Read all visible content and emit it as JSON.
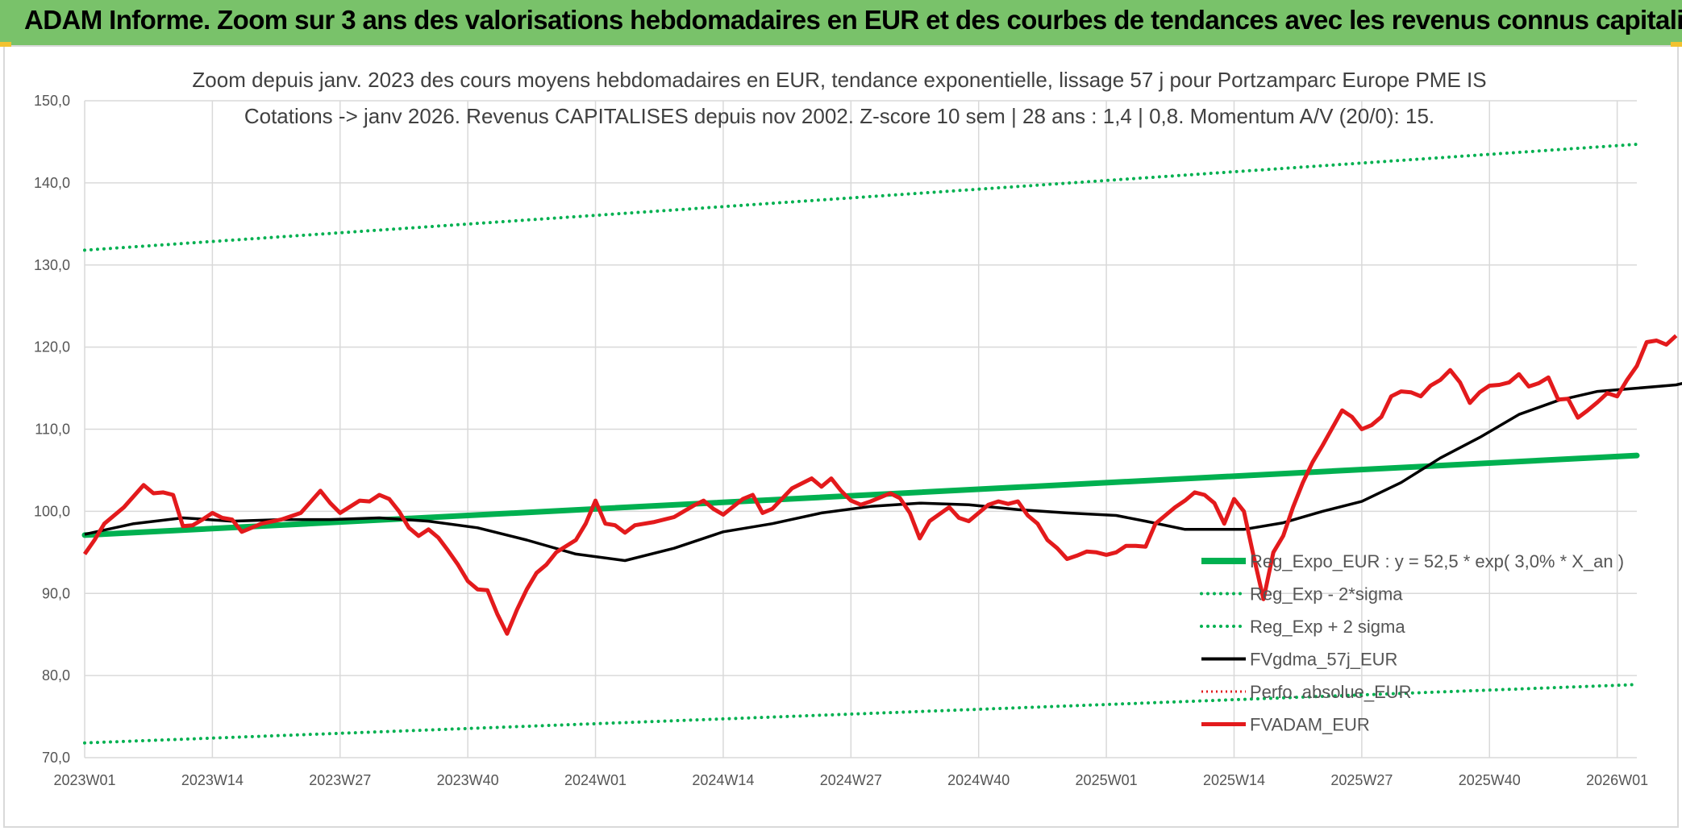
{
  "banner": {
    "title": "ADAM Informe. Zoom sur 3 ans des valorisations hebdomadaires en EUR et des courbes de tendances avec les revenus connus capitalisés"
  },
  "colors": {
    "banner": "#79c26a",
    "trend": "#00b050",
    "sigma": "#00b050",
    "mma": "#000000",
    "price": "#e31a1c",
    "perfo": "#e31a1c",
    "grid": "#d9d9d9"
  },
  "chart_data": {
    "type": "line",
    "title": [
      "Zoom depuis janv. 2023 des cours moyens hebdomadaires en EUR, tendance exponentielle, lissage 57 j pour Portzamparc Europe PME IS",
      "Cotations -> janv 2026. Revenus CAPITALISES depuis nov 2002. Z-score 10 sem | 28 ans : 1,4 | 0,8. Momentum A/V (20/0): 15."
    ],
    "ylim": [
      70,
      150
    ],
    "ytick_values": [
      70,
      80,
      90,
      100,
      110,
      120,
      130,
      140,
      150
    ],
    "ytick_labels": [
      "70,0",
      "80,0",
      "90,0",
      "100,0",
      "110,0",
      "120,0",
      "130,0",
      "140,0",
      "150,0"
    ],
    "x_count": 159,
    "xtick_labels": [
      "2023W01",
      "2023W14",
      "2023W27",
      "2023W40",
      "2024W01",
      "2024W14",
      "2024W27",
      "2024W40",
      "2025W01",
      "2025W14",
      "2025W27",
      "2025W40",
      "2026W01"
    ],
    "legend": [
      {
        "key": "reg",
        "name": "Reg_Expo_EUR : y = 52,5 * exp( 3,0% *  X_an )"
      },
      {
        "key": "lo",
        "name": "Reg_Exp - 2*sigma"
      },
      {
        "key": "hi",
        "name": "Reg_Exp + 2 sigma"
      },
      {
        "key": "mma",
        "name": "FVgdma_57j_EUR"
      },
      {
        "key": "perfo",
        "name": "Perfo. absolue_EUR"
      },
      {
        "key": "price",
        "name": "FVADAM_EUR"
      }
    ],
    "series": [
      {
        "key": "reg",
        "name": "Reg_Expo_EUR",
        "style": "thick",
        "points": [
          [
            0,
            97.1
          ],
          [
            158,
            106.8
          ]
        ]
      },
      {
        "key": "lo",
        "name": "Reg_Exp - 2*sigma",
        "style": "dotted",
        "points": [
          [
            0,
            71.8
          ],
          [
            158,
            78.9
          ]
        ]
      },
      {
        "key": "hi",
        "name": "Reg_Exp + 2 sigma",
        "style": "dotted",
        "points": [
          [
            0,
            131.8
          ],
          [
            158,
            144.7
          ]
        ]
      },
      {
        "key": "mma",
        "name": "FVgdma_57j_EUR",
        "style": "solid",
        "points": [
          [
            0,
            97.2
          ],
          [
            5,
            98.5
          ],
          [
            10,
            99.2
          ],
          [
            15,
            98.8
          ],
          [
            20,
            99.0
          ],
          [
            25,
            99.0
          ],
          [
            30,
            99.2
          ],
          [
            35,
            98.8
          ],
          [
            40,
            98.0
          ],
          [
            45,
            96.5
          ],
          [
            50,
            94.8
          ],
          [
            55,
            94.0
          ],
          [
            60,
            95.5
          ],
          [
            65,
            97.5
          ],
          [
            70,
            98.5
          ],
          [
            75,
            99.8
          ],
          [
            80,
            100.6
          ],
          [
            85,
            101.0
          ],
          [
            90,
            100.8
          ],
          [
            95,
            100.2
          ],
          [
            100,
            99.8
          ],
          [
            105,
            99.5
          ],
          [
            108,
            98.8
          ],
          [
            112,
            97.8
          ],
          [
            118,
            97.8
          ],
          [
            122,
            98.6
          ],
          [
            126,
            100.0
          ],
          [
            130,
            101.2
          ],
          [
            134,
            103.5
          ],
          [
            138,
            106.5
          ],
          [
            142,
            109.0
          ],
          [
            146,
            111.8
          ],
          [
            150,
            113.5
          ],
          [
            154,
            114.6
          ],
          [
            158,
            115.0
          ],
          [
            162,
            115.4
          ],
          [
            166,
            116.5
          ],
          [
            170,
            118.0
          ],
          [
            174,
            119.0
          ]
        ]
      },
      {
        "key": "price",
        "name": "FVADAM_EUR",
        "style": "solid",
        "points": [
          [
            0,
            94.8
          ],
          [
            1,
            96.5
          ],
          [
            2,
            98.5
          ],
          [
            4,
            100.5
          ],
          [
            6,
            103.2
          ],
          [
            7,
            102.2
          ],
          [
            8,
            102.3
          ],
          [
            9,
            102.0
          ],
          [
            10,
            98.2
          ],
          [
            11,
            98.3
          ],
          [
            12,
            99.0
          ],
          [
            13,
            99.8
          ],
          [
            14,
            99.2
          ],
          [
            15,
            99.0
          ],
          [
            16,
            97.5
          ],
          [
            18,
            98.5
          ],
          [
            20,
            99.0
          ],
          [
            22,
            99.8
          ],
          [
            24,
            102.5
          ],
          [
            25,
            101.0
          ],
          [
            26,
            99.8
          ],
          [
            28,
            101.3
          ],
          [
            29,
            101.2
          ],
          [
            30,
            102.0
          ],
          [
            31,
            101.5
          ],
          [
            32,
            100.0
          ],
          [
            33,
            98.0
          ],
          [
            34,
            97.0
          ],
          [
            35,
            97.8
          ],
          [
            36,
            96.8
          ],
          [
            37,
            95.2
          ],
          [
            38,
            93.5
          ],
          [
            39,
            91.5
          ],
          [
            40,
            90.5
          ],
          [
            41,
            90.4
          ],
          [
            42,
            87.5
          ],
          [
            43,
            85.1
          ],
          [
            44,
            88.0
          ],
          [
            45,
            90.5
          ],
          [
            46,
            92.5
          ],
          [
            47,
            93.5
          ],
          [
            48,
            95.0
          ],
          [
            50,
            96.5
          ],
          [
            51,
            98.5
          ],
          [
            52,
            101.3
          ],
          [
            53,
            98.5
          ],
          [
            54,
            98.3
          ],
          [
            55,
            97.4
          ],
          [
            56,
            98.3
          ],
          [
            58,
            98.7
          ],
          [
            60,
            99.3
          ],
          [
            62,
            100.7
          ],
          [
            63,
            101.3
          ],
          [
            64,
            100.3
          ],
          [
            65,
            99.6
          ],
          [
            67,
            101.5
          ],
          [
            68,
            102.0
          ],
          [
            69,
            99.8
          ],
          [
            70,
            100.3
          ],
          [
            72,
            102.8
          ],
          [
            74,
            104.0
          ],
          [
            75,
            103.0
          ],
          [
            76,
            104.0
          ],
          [
            77,
            102.5
          ],
          [
            78,
            101.3
          ],
          [
            79,
            100.8
          ],
          [
            80,
            101.2
          ],
          [
            82,
            102.2
          ],
          [
            83,
            101.6
          ],
          [
            84,
            99.8
          ],
          [
            85,
            96.7
          ],
          [
            86,
            98.8
          ],
          [
            88,
            100.5
          ],
          [
            89,
            99.2
          ],
          [
            90,
            98.8
          ],
          [
            92,
            100.8
          ],
          [
            93,
            101.2
          ],
          [
            94,
            100.9
          ],
          [
            95,
            101.2
          ],
          [
            96,
            99.5
          ],
          [
            97,
            98.5
          ],
          [
            98,
            96.5
          ],
          [
            99,
            95.5
          ],
          [
            100,
            94.2
          ],
          [
            101,
            94.6
          ],
          [
            102,
            95.1
          ],
          [
            103,
            95.0
          ],
          [
            104,
            94.7
          ],
          [
            105,
            95.0
          ],
          [
            106,
            95.8
          ],
          [
            107,
            95.8
          ],
          [
            108,
            95.7
          ],
          [
            109,
            98.5
          ],
          [
            110,
            99.5
          ],
          [
            111,
            100.5
          ],
          [
            112,
            101.3
          ],
          [
            113,
            102.3
          ],
          [
            114,
            102.0
          ],
          [
            115,
            101.0
          ],
          [
            116,
            98.5
          ],
          [
            117,
            101.5
          ],
          [
            118,
            100.0
          ],
          [
            119,
            94.5
          ],
          [
            120,
            89.3
          ],
          [
            121,
            95.0
          ],
          [
            122,
            97.0
          ],
          [
            123,
            100.5
          ],
          [
            124,
            103.5
          ],
          [
            125,
            106.0
          ],
          [
            126,
            108.0
          ],
          [
            128,
            112.3
          ],
          [
            129,
            111.5
          ],
          [
            130,
            110.0
          ],
          [
            131,
            110.5
          ],
          [
            132,
            111.5
          ],
          [
            133,
            114.0
          ],
          [
            134,
            114.6
          ],
          [
            135,
            114.5
          ],
          [
            136,
            114.0
          ],
          [
            137,
            115.3
          ],
          [
            138,
            116.0
          ],
          [
            139,
            117.2
          ],
          [
            140,
            115.7
          ],
          [
            141,
            113.2
          ],
          [
            142,
            114.5
          ],
          [
            143,
            115.3
          ],
          [
            144,
            115.4
          ],
          [
            145,
            115.7
          ],
          [
            146,
            116.7
          ],
          [
            147,
            115.2
          ],
          [
            148,
            115.6
          ],
          [
            149,
            116.3
          ],
          [
            150,
            113.6
          ],
          [
            151,
            113.7
          ],
          [
            152,
            111.4
          ],
          [
            153,
            112.3
          ],
          [
            154,
            113.3
          ],
          [
            155,
            114.4
          ],
          [
            156,
            114.0
          ],
          [
            157,
            116.0
          ],
          [
            158,
            117.7
          ],
          [
            159,
            120.6
          ],
          [
            160,
            120.8
          ],
          [
            161,
            120.3
          ],
          [
            162,
            121.4
          ]
        ]
      }
    ]
  }
}
